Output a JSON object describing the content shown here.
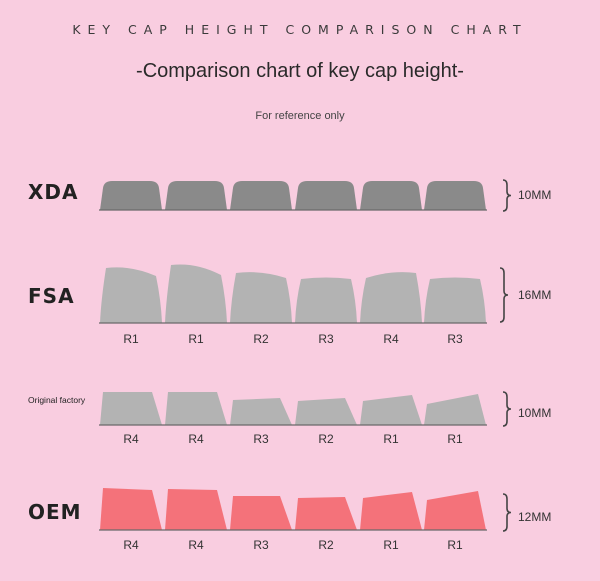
{
  "header": {
    "banner": "KEY CAP HEIGHT COMPARISON CHART",
    "title": "-Comparison chart of key cap height-",
    "subtitle": "For reference only"
  },
  "profiles": [
    {
      "name": "XDA",
      "label_style": "large",
      "height": "10MM",
      "color": "#8a8a8a",
      "rows": []
    },
    {
      "name": "FSA",
      "label_style": "large",
      "height": "16MM",
      "color": "#b3b3b3",
      "rows": [
        "R1",
        "R1",
        "R2",
        "R3",
        "R4",
        "R3"
      ]
    },
    {
      "name": "Original factory",
      "label_style": "small",
      "height": "10MM",
      "color": "#b3b3b3",
      "rows": [
        "R4",
        "R4",
        "R3",
        "R2",
        "R1",
        "R1"
      ]
    },
    {
      "name": "OEM",
      "label_style": "large",
      "height": "12MM",
      "color": "#f4727a",
      "rows": [
        "R4",
        "R4",
        "R3",
        "R2",
        "R1",
        "R1"
      ]
    }
  ]
}
